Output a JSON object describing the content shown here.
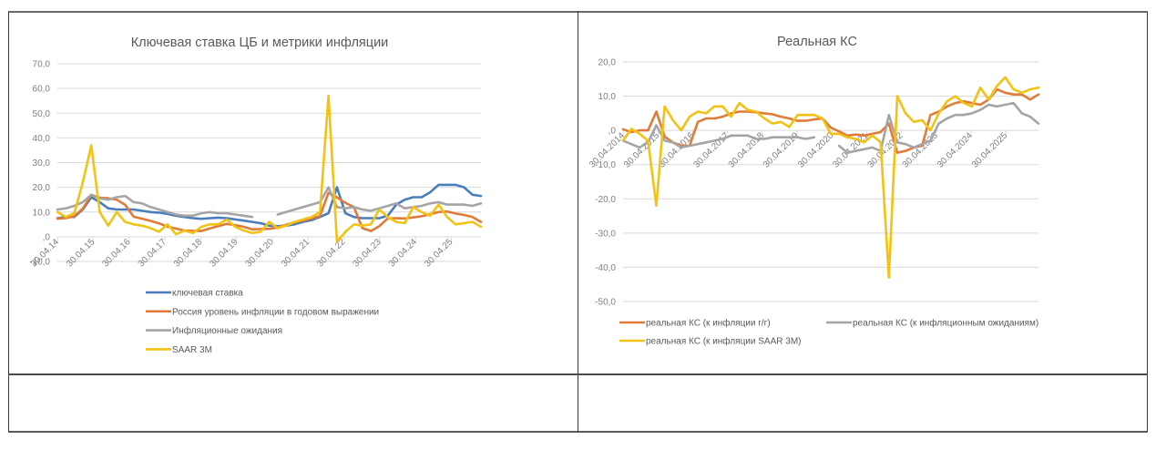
{
  "chart_data": [
    {
      "type": "line",
      "title": "Ключевая ставка ЦБ и метрики инфляции",
      "xlabel": "",
      "ylabel": "",
      "ylim": [
        -10,
        70
      ],
      "yticks": [
        70,
        60,
        50,
        40,
        30,
        20,
        10,
        0,
        -10
      ],
      "ytick_labels": [
        "70,0",
        "60,0",
        "50,0",
        "40,0",
        "30,0",
        "20,0",
        "10,0",
        ",0",
        "-10,0"
      ],
      "xticks": [
        "30.04.14",
        "30.04.15",
        "30.04.16",
        "30.04.17",
        "30.04.18",
        "30.04.19",
        "30.04.20",
        "30.04.21",
        "30.04.22",
        "30.04.23",
        "30.04.24",
        "30.04.25"
      ],
      "x_range_years": [
        2014.33,
        2025.83
      ],
      "x_start_year": 2014.33,
      "x_step_years": 0.25,
      "grid": true,
      "legend": "bottom",
      "series": [
        {
          "name": "ключевая ставка",
          "color": "#4a7ebb",
          "values": [
            7.5,
            8,
            8,
            11,
            16,
            14,
            11.5,
            11,
            11,
            11,
            10.5,
            10,
            9.75,
            9.25,
            8.5,
            8,
            7.5,
            7.25,
            7.5,
            7.75,
            7.5,
            7,
            6.5,
            6,
            5.5,
            4.5,
            4.25,
            4.5,
            5,
            6,
            6.75,
            8,
            9.5,
            20,
            9.5,
            8,
            7.5,
            7.5,
            7.5,
            8.5,
            13,
            15,
            16,
            16,
            18,
            21,
            21,
            21,
            20,
            17,
            16.5
          ]
        },
        {
          "name": "Россия уровень инфляции в годовом выражении",
          "color": "#e07b39",
          "values": [
            7.3,
            7.5,
            8.3,
            11.4,
            16.9,
            15.8,
            15.6,
            15,
            12.9,
            8.1,
            7.3,
            6.4,
            5.4,
            4.1,
            3.3,
            2.5,
            2.4,
            2.3,
            3.4,
            4.3,
            5.2,
            4.7,
            4,
            3,
            3.1,
            3.2,
            3.7,
            4.9,
            5.8,
            6.5,
            7.4,
            8.4,
            17.8,
            15.9,
            13.7,
            12,
            3.5,
            2.3,
            4.3,
            7.4,
            7.5,
            7.4,
            7.8,
            8.3,
            9.1,
            10,
            10.2,
            9.4,
            8.8,
            8,
            6
          ]
        },
        {
          "name": "Инфляционные ожидания",
          "color": "#a5a5a5",
          "values": [
            11,
            11.5,
            12.5,
            14,
            17,
            15.5,
            15,
            16,
            16.5,
            14,
            13.5,
            12,
            11,
            10,
            9,
            8.5,
            8.5,
            9.5,
            10,
            9.5,
            9.5,
            9,
            8.5,
            8,
            null,
            null,
            9,
            10,
            11,
            12,
            13,
            14,
            20,
            12,
            11.5,
            12,
            11,
            10.5,
            11.5,
            12.5,
            13.5,
            11.5,
            12,
            12.5,
            13.5,
            14,
            13,
            13,
            13,
            12.5,
            13.5
          ]
        },
        {
          "name": "SAAR 3M",
          "color": "#f2c314",
          "values": [
            10,
            8,
            9.5,
            22,
            37,
            10,
            4.5,
            10,
            6,
            5,
            4.5,
            3.5,
            2,
            5,
            1,
            2.5,
            1.5,
            4,
            5,
            5,
            7,
            4,
            2.5,
            1.5,
            2,
            6,
            3.5,
            4.5,
            6,
            7,
            8,
            10,
            57,
            -2,
            2,
            5,
            4.5,
            5,
            11,
            8,
            6,
            5.5,
            12,
            10,
            8.5,
            13,
            8,
            5,
            5.5,
            6,
            4
          ]
        }
      ]
    },
    {
      "type": "line",
      "title": "Реальная КС",
      "xlabel": "",
      "ylabel": "",
      "ylim": [
        -50,
        20
      ],
      "yticks": [
        20,
        10,
        0,
        -10,
        -20,
        -30,
        -40,
        -50
      ],
      "ytick_labels": [
        "20,0",
        "10,0",
        ",0",
        "-10,0",
        "-20,0",
        "-30,0",
        "-40,0",
        "-50,0"
      ],
      "xticks": [
        "30.04.2014",
        "30.04.2015",
        "30.04.2016",
        "30.04.2017",
        "30.04.2018",
        "30.04.2019",
        "30.04.2020",
        "30.04.2021",
        "30.04.2022",
        "30.04.2023",
        "30.04.2024",
        "30.04.2025"
      ],
      "x_range_years": [
        2014.0,
        2025.85
      ],
      "x_start_year": 2014.0,
      "x_step_years": 0.25,
      "grid": true,
      "legend": "bottom",
      "series": [
        {
          "name": "реальная КС (к инфляции г/г)",
          "color": "#e07b39",
          "values": [
            0.3,
            -0.5,
            0,
            0,
            5.5,
            -1.8,
            -3.5,
            -4.5,
            -4.5,
            2.5,
            3.5,
            3.5,
            4,
            5,
            5.5,
            5.5,
            5.3,
            5,
            4.7,
            4,
            3.5,
            2.8,
            2.8,
            3.2,
            3.5,
            0.8,
            -0.3,
            -1.5,
            -1.2,
            -1.5,
            -1,
            -0.5,
            2,
            -6.5,
            -6,
            -5,
            -4.5,
            4.5,
            5.5,
            7,
            8,
            8.5,
            8,
            7.5,
            9,
            12,
            11,
            10.5,
            10.5,
            9,
            10.5
          ]
        },
        {
          "name": "реальная КС (к инфляционным ожиданиям)",
          "color": "#a5a5a5",
          "values": [
            -3,
            -4,
            -5,
            -3.5,
            1.5,
            -3,
            -3.5,
            -5,
            -4.5,
            -4,
            -3.5,
            -3,
            -2.5,
            -1.5,
            -1.5,
            -1.5,
            -2.5,
            -2.5,
            -2,
            -2,
            -2,
            -2,
            -2.5,
            -2,
            null,
            null,
            -4.5,
            -6.5,
            -6,
            -5.5,
            -5,
            -6,
            4.5,
            -3.5,
            -4,
            -5,
            -4,
            -3,
            2,
            3.5,
            4.5,
            4.5,
            5,
            6,
            7.5,
            7,
            7.5,
            8,
            5,
            4,
            2
          ]
        },
        {
          "name": "реальная КС (к инфляции SAAR 3M)",
          "color": "#f2c314",
          "values": [
            -3,
            0.5,
            -1,
            -3,
            -22,
            7,
            3,
            0,
            4,
            5.5,
            5,
            7,
            7,
            4,
            8,
            6,
            5.5,
            3.5,
            2,
            2.5,
            1,
            4.5,
            4.5,
            4.5,
            3.5,
            -1,
            -1,
            -2,
            -2.5,
            -3.5,
            -1.5,
            -3.5,
            -43,
            10,
            5,
            2.5,
            3,
            0,
            5,
            8.5,
            10,
            8,
            7,
            12.5,
            9,
            13,
            15.5,
            12,
            11,
            12,
            12.5
          ]
        }
      ]
    }
  ],
  "table": {
    "rows": 2,
    "cols": 2
  }
}
